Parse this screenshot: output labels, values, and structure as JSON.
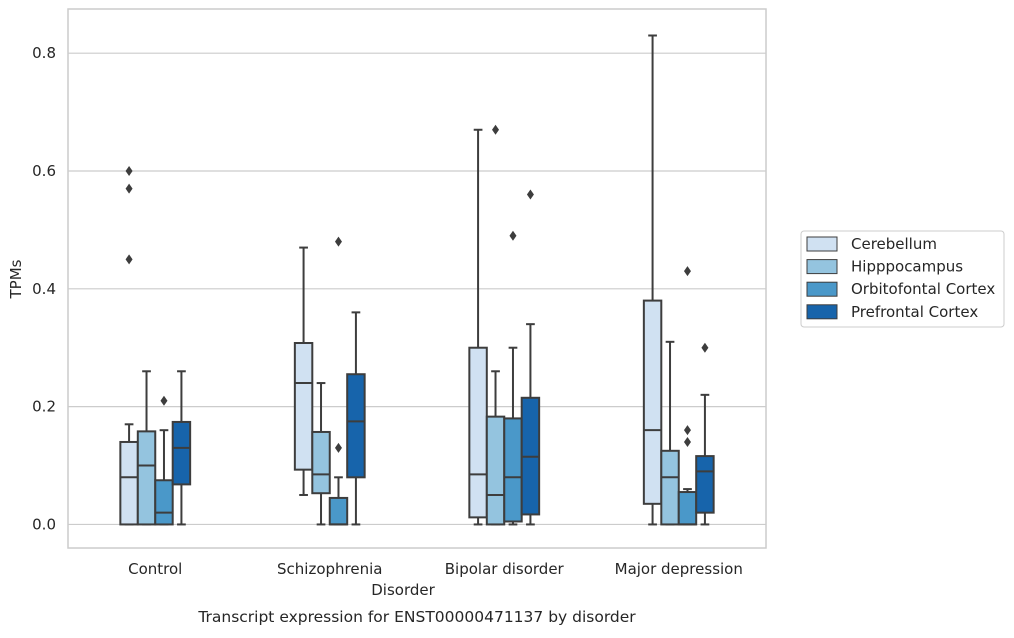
{
  "chart_data": {
    "type": "box",
    "title": "",
    "caption": "Transcript expression for ENST00000471137 by disorder",
    "xlabel": "Disorder",
    "ylabel": "TPMs",
    "ylim": [
      -0.04,
      0.875
    ],
    "yticks": [
      0.0,
      0.2,
      0.4,
      0.6,
      0.8
    ],
    "ytick_labels": [
      "0.0",
      "0.2",
      "0.4",
      "0.6",
      "0.8"
    ],
    "grid": "horizontal",
    "legend_position": "right",
    "categories": [
      "Control",
      "Schizophrenia",
      "Bipolar disorder",
      "Major depression"
    ],
    "series": [
      {
        "name": "Cerebellum",
        "color": "#d0e1f2",
        "boxes": [
          {
            "whisker_low": 0.0,
            "q1": 0.0,
            "median": 0.08,
            "q3": 0.14,
            "whisker_high": 0.17,
            "outliers": [
              0.45,
              0.57,
              0.6
            ]
          },
          {
            "whisker_low": 0.05,
            "q1": 0.093,
            "median": 0.24,
            "q3": 0.308,
            "whisker_high": 0.47,
            "outliers": []
          },
          {
            "whisker_low": 0.0,
            "q1": 0.012,
            "median": 0.085,
            "q3": 0.3,
            "whisker_high": 0.67,
            "outliers": []
          },
          {
            "whisker_low": 0.0,
            "q1": 0.035,
            "median": 0.16,
            "q3": 0.38,
            "whisker_high": 0.83,
            "outliers": []
          }
        ]
      },
      {
        "name": "Hipppocampus",
        "color": "#94c4df",
        "boxes": [
          {
            "whisker_low": 0.0,
            "q1": 0.0,
            "median": 0.1,
            "q3": 0.158,
            "whisker_high": 0.26,
            "outliers": []
          },
          {
            "whisker_low": 0.0,
            "q1": 0.053,
            "median": 0.085,
            "q3": 0.157,
            "whisker_high": 0.24,
            "outliers": []
          },
          {
            "whisker_low": 0.0,
            "q1": 0.0,
            "median": 0.05,
            "q3": 0.183,
            "whisker_high": 0.26,
            "outliers": [
              0.67
            ]
          },
          {
            "whisker_low": 0.0,
            "q1": 0.0,
            "median": 0.08,
            "q3": 0.125,
            "whisker_high": 0.31,
            "outliers": []
          }
        ]
      },
      {
        "name": "Orbitofontal Cortex",
        "color": "#4a98c9",
        "boxes": [
          {
            "whisker_low": 0.0,
            "q1": 0.0,
            "median": 0.02,
            "q3": 0.075,
            "whisker_high": 0.16,
            "outliers": [
              0.21
            ]
          },
          {
            "whisker_low": 0.0,
            "q1": 0.0,
            "median": 0.0,
            "q3": 0.045,
            "whisker_high": 0.08,
            "outliers": [
              0.13,
              0.48
            ]
          },
          {
            "whisker_low": 0.0,
            "q1": 0.005,
            "median": 0.08,
            "q3": 0.18,
            "whisker_high": 0.3,
            "outliers": [
              0.49
            ]
          },
          {
            "whisker_low": 0.0,
            "q1": 0.0,
            "median": 0.0,
            "q3": 0.055,
            "whisker_high": 0.06,
            "outliers": [
              0.14,
              0.16,
              0.43
            ]
          }
        ]
      },
      {
        "name": "Prefrontal Cortex",
        "color": "#1764ab",
        "boxes": [
          {
            "whisker_low": 0.0,
            "q1": 0.068,
            "median": 0.13,
            "q3": 0.174,
            "whisker_high": 0.26,
            "outliers": []
          },
          {
            "whisker_low": 0.0,
            "q1": 0.08,
            "median": 0.175,
            "q3": 0.255,
            "whisker_high": 0.36,
            "outliers": []
          },
          {
            "whisker_low": 0.0,
            "q1": 0.017,
            "median": 0.115,
            "q3": 0.215,
            "whisker_high": 0.34,
            "outliers": [
              0.56
            ]
          },
          {
            "whisker_low": 0.0,
            "q1": 0.02,
            "median": 0.09,
            "q3": 0.116,
            "whisker_high": 0.22,
            "outliers": [
              0.3
            ]
          }
        ]
      }
    ]
  }
}
